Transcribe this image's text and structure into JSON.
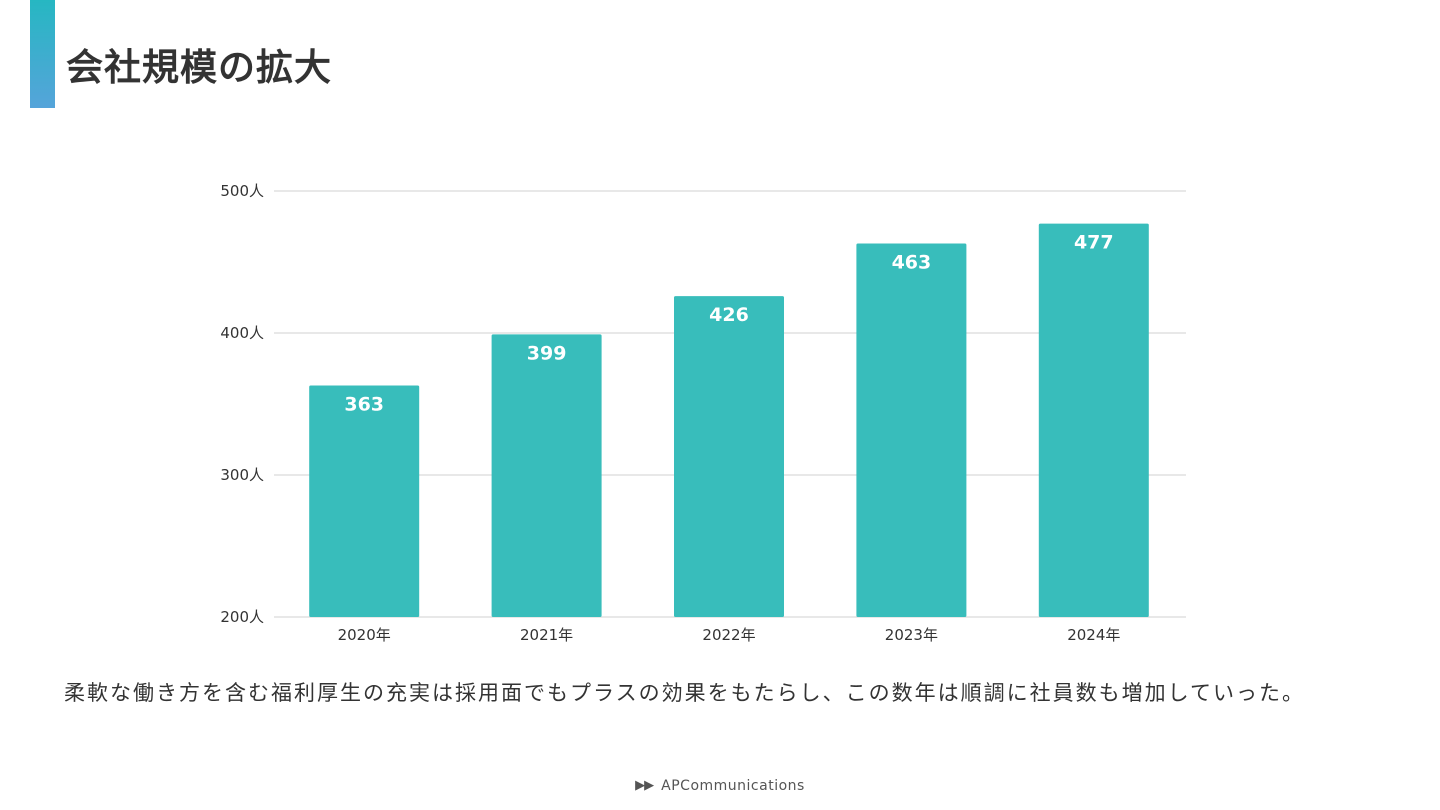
{
  "slide": {
    "title": "会社規模の拡大",
    "caption": "柔軟な働き方を含む福利厚生の充実は採用面でもプラスの効果をもたらし、この数年は順調に社員数も増加していった。",
    "footer_arrows": "▶▶",
    "footer_brand": "APCommunications"
  },
  "colors": {
    "bar": "#38bdbb",
    "accent_top": "#26b7c2",
    "accent_bottom": "#55a4da"
  },
  "chart_data": {
    "type": "bar",
    "title": "",
    "xlabel": "",
    "ylabel": "",
    "categories": [
      "2020年",
      "2021年",
      "2022年",
      "2023年",
      "2024年"
    ],
    "values": [
      363,
      399,
      426,
      463,
      477
    ],
    "data_labels": [
      "363",
      "399",
      "426",
      "463",
      "477"
    ],
    "ylim": [
      200,
      500
    ],
    "yticks": [
      200,
      300,
      400,
      500
    ],
    "ytick_labels": [
      "200人",
      "300人",
      "400人",
      "500人"
    ],
    "grid": true,
    "legend": "none"
  }
}
